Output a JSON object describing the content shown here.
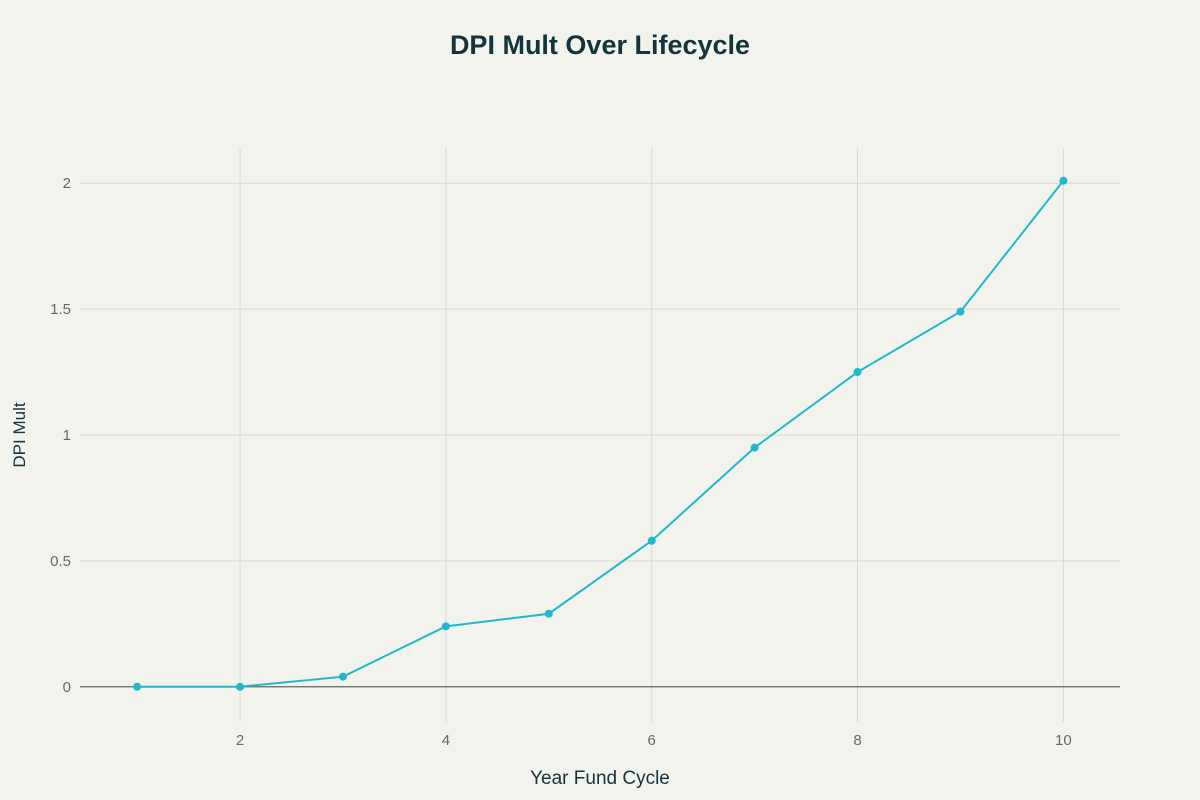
{
  "chart_data": {
    "type": "line",
    "title": "DPI Mult Over Lifecycle",
    "xlabel": "Year Fund Cycle",
    "ylabel": "DPI Mult",
    "x": [
      1,
      2,
      3,
      4,
      5,
      6,
      7,
      8,
      9,
      10
    ],
    "series": [
      {
        "name": "DPI Mult",
        "values": [
          0,
          0,
          0.04,
          0.24,
          0.29,
          0.58,
          0.95,
          1.25,
          1.49,
          2.01
        ],
        "color": "#1fb8cd"
      }
    ],
    "xticks": [
      2,
      4,
      6,
      8,
      10
    ],
    "xtick_labels": [
      "2",
      "4",
      "6",
      "8",
      "10"
    ],
    "yticks": [
      0,
      0.5,
      1,
      1.5,
      2
    ],
    "ytick_labels": [
      "0",
      "0.5",
      "1",
      "1.5",
      "2"
    ],
    "xlim": [
      0.445,
      10.55
    ],
    "ylim": [
      -0.14,
      2.14
    ],
    "grid": true,
    "legend": false
  },
  "colors": {
    "background": "#f3f3ee",
    "line": "#1fb8cd",
    "grid": "#d9d9d4",
    "zeroline": "#5f6466",
    "text": "#13343b"
  }
}
